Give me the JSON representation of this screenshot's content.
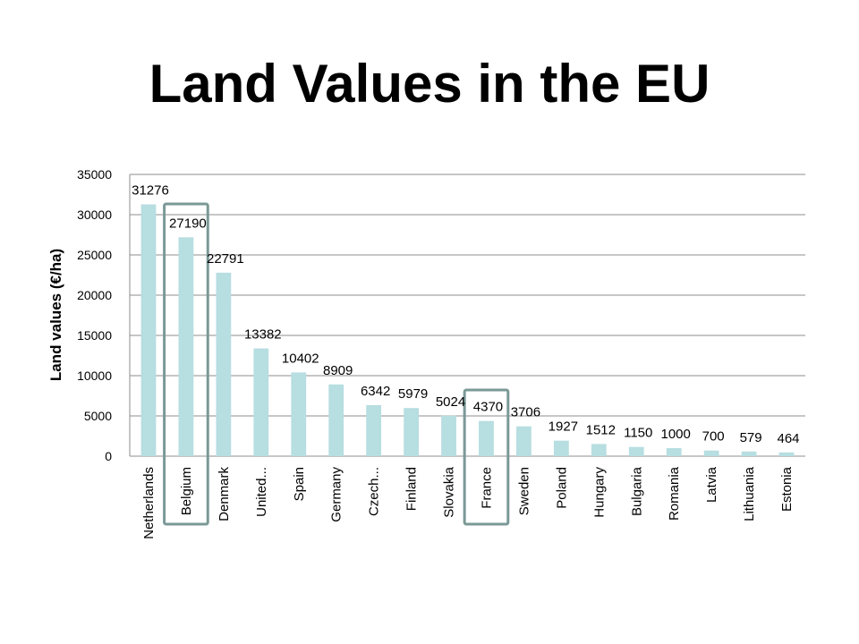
{
  "title": "Land Values in the EU",
  "chart_data": {
    "type": "bar",
    "title": "",
    "xlabel": "",
    "ylabel": "Land values (€/ha)",
    "ylim": [
      0,
      35000
    ],
    "yticks": [
      0,
      5000,
      10000,
      15000,
      20000,
      25000,
      30000,
      35000
    ],
    "grid": true,
    "categories": [
      "Netherlands",
      "Belgium",
      "Denmark",
      "United...",
      "Spain",
      "Germany",
      "Czech...",
      "Finland",
      "Slovakia",
      "France",
      "Sweden",
      "Poland",
      "Hungary",
      "Bulgaria",
      "Romania",
      "Latvia",
      "Lithuania",
      "Estonia"
    ],
    "values": [
      31276,
      27190,
      22791,
      13382,
      10402,
      8909,
      6342,
      5979,
      5024,
      4370,
      3706,
      1927,
      1512,
      1150,
      1000,
      700,
      579,
      464
    ],
    "highlighted_categories": [
      "Belgium",
      "France"
    ],
    "colors": {
      "bar": "#b7dee1",
      "highlight_box": "#7a9996",
      "grid": "#8c8c8c",
      "text": "#000000"
    }
  }
}
